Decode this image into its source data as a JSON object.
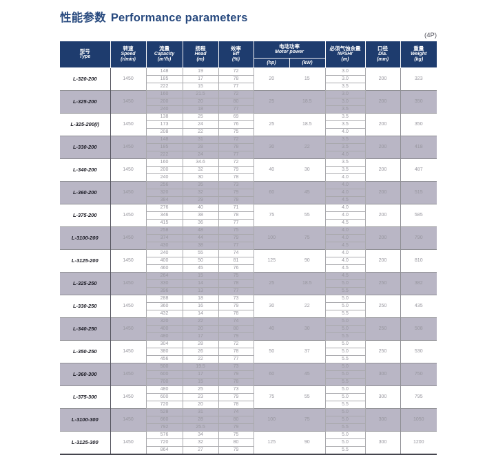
{
  "title": {
    "zh": "性能参数",
    "en": "Performance parameters"
  },
  "page_tag": "(4P)",
  "colors": {
    "header_bg": "#1e3c6e",
    "row_shade": "#b9b6c5",
    "title_color": "#27497e",
    "data_text": "#97969e",
    "model_text": "#16161f"
  },
  "table": {
    "headers": {
      "type": {
        "zh": "型号",
        "en": "Type"
      },
      "speed": {
        "zh": "转速",
        "en": "Speed",
        "unit": "(r/min)"
      },
      "capacity": {
        "zh": "流量",
        "en": "Capacity",
        "unit": "(m³/h)"
      },
      "head": {
        "zh": "扬程",
        "en": "Head",
        "unit": "(m)"
      },
      "eff": {
        "zh": "效率",
        "en": "Eff",
        "unit": "(%)"
      },
      "motor_power": {
        "zh": "电动功率",
        "en": "Motor power",
        "sub": [
          "(hp)",
          "(kW)"
        ]
      },
      "npshr": {
        "zh": "必须气蚀余量",
        "en": "NPSHr",
        "unit": "(m)"
      },
      "dia": {
        "zh": "口径",
        "en": "Dia.",
        "unit": "(mm)"
      },
      "weight": {
        "zh": "重量",
        "en": "Weight",
        "unit": "(kg)"
      }
    },
    "rows": [
      {
        "type": "L-320-200",
        "speed": "1450",
        "capacity": [
          "148",
          "185",
          "222"
        ],
        "head": [
          "19",
          "17",
          "15"
        ],
        "eff": [
          "72",
          "78",
          "77"
        ],
        "hp": "20",
        "kw": "15",
        "npshr": [
          "3.0",
          "3.0",
          "3.5"
        ],
        "dia": "200",
        "weight": "323"
      },
      {
        "type": "L-325-200",
        "speed": "1450",
        "capacity": [
          "160",
          "200",
          "240"
        ],
        "head": [
          "21.5",
          "20",
          "18"
        ],
        "eff": [
          "72",
          "80",
          "77"
        ],
        "hp": "25",
        "kw": "18.5",
        "npshr": [
          "3.0",
          "3.0",
          "3.5"
        ],
        "dia": "200",
        "weight": "350"
      },
      {
        "type": "L-325-200(I)",
        "speed": "1450",
        "capacity": [
          "138",
          "173",
          "208"
        ],
        "head": [
          "25",
          "24",
          "22"
        ],
        "eff": [
          "69",
          "76",
          "75"
        ],
        "hp": "25",
        "kw": "18.5",
        "npshr": [
          "3.5",
          "3.5",
          "4.0"
        ],
        "dia": "200",
        "weight": "350"
      },
      {
        "type": "L-330-200",
        "speed": "1450",
        "capacity": [
          "148",
          "185",
          "222"
        ],
        "head": [
          "31",
          "28",
          "24"
        ],
        "eff": [
          "72",
          "78",
          "77"
        ],
        "hp": "30",
        "kw": "22",
        "npshr": [
          "3.5",
          "3.5",
          "4.0"
        ],
        "dia": "200",
        "weight": "418"
      },
      {
        "type": "L-340-200",
        "speed": "1450",
        "capacity": [
          "160",
          "200",
          "240"
        ],
        "head": [
          "34.6",
          "32",
          "30"
        ],
        "eff": [
          "72",
          "79",
          "78"
        ],
        "hp": "40",
        "kw": "30",
        "npshr": [
          "3.5",
          "3.5",
          "4.0"
        ],
        "dia": "200",
        "weight": "487"
      },
      {
        "type": "L-360-200",
        "speed": "1450",
        "capacity": [
          "256",
          "320",
          "384"
        ],
        "head": [
          "35",
          "32",
          "29"
        ],
        "eff": [
          "73",
          "79",
          "78"
        ],
        "hp": "60",
        "kw": "45",
        "npshr": [
          "4.0",
          "4.0",
          "4.5"
        ],
        "dia": "200",
        "weight": "515"
      },
      {
        "type": "L-375-200",
        "speed": "1450",
        "capacity": [
          "276",
          "346",
          "415"
        ],
        "head": [
          "40",
          "38",
          "36"
        ],
        "eff": [
          "71",
          "78",
          "77"
        ],
        "hp": "75",
        "kw": "55",
        "npshr": [
          "4.0",
          "4.0",
          "4.5"
        ],
        "dia": "200",
        "weight": "585"
      },
      {
        "type": "L-3100-200",
        "speed": "1450",
        "capacity": [
          "258",
          "374",
          "430"
        ],
        "head": [
          "48",
          "44",
          "38"
        ],
        "eff": [
          "75",
          "79",
          "77"
        ],
        "hp": "100",
        "kw": "75",
        "npshr": [
          "4.0",
          "4.0",
          "4.5"
        ],
        "dia": "200",
        "weight": "790"
      },
      {
        "type": "L-3125-200",
        "speed": "1450",
        "capacity": [
          "240",
          "400",
          "460"
        ],
        "head": [
          "55",
          "50",
          "45"
        ],
        "eff": [
          "74",
          "81",
          "76"
        ],
        "hp": "125",
        "kw": "90",
        "npshr": [
          "4.0",
          "4.0",
          "4.5"
        ],
        "dia": "200",
        "weight": "810"
      },
      {
        "type": "L-325-250",
        "speed": "1450",
        "capacity": [
          "264",
          "330",
          "396"
        ],
        "head": [
          "15",
          "14",
          "13"
        ],
        "eff": [
          "75",
          "78",
          "77"
        ],
        "hp": "25",
        "kw": "18.5",
        "npshr": [
          "4.5",
          "5.0",
          "5.5"
        ],
        "dia": "250",
        "weight": "382"
      },
      {
        "type": "L-330-250",
        "speed": "1450",
        "capacity": [
          "288",
          "360",
          "432"
        ],
        "head": [
          "18",
          "16",
          "14"
        ],
        "eff": [
          "73",
          "79",
          "78"
        ],
        "hp": "30",
        "kw": "22",
        "npshr": [
          "5.0",
          "5.0",
          "5.5"
        ],
        "dia": "250",
        "weight": "435"
      },
      {
        "type": "L-340-250",
        "speed": "1450",
        "capacity": [
          "320",
          "400",
          "480"
        ],
        "head": [
          "22",
          "20",
          "17"
        ],
        "eff": [
          "74",
          "80",
          "79"
        ],
        "hp": "40",
        "kw": "30",
        "npshr": [
          "5.0",
          "5.0",
          "5.5"
        ],
        "dia": "250",
        "weight": "508"
      },
      {
        "type": "L-350-250",
        "speed": "1450",
        "capacity": [
          "304",
          "380",
          "456"
        ],
        "head": [
          "28",
          "26",
          "22"
        ],
        "eff": [
          "72",
          "78",
          "77"
        ],
        "hp": "50",
        "kw": "37",
        "npshr": [
          "5.0",
          "5.0",
          "5.5"
        ],
        "dia": "250",
        "weight": "530"
      },
      {
        "type": "L-360-300",
        "speed": "1450",
        "capacity": [
          "500",
          "600",
          "700"
        ],
        "head": [
          "19.5",
          "17",
          "15"
        ],
        "eff": [
          "73",
          "79",
          "78"
        ],
        "hp": "60",
        "kw": "45",
        "npshr": [
          "5.0",
          "5.0",
          "5.5"
        ],
        "dia": "300",
        "weight": "750"
      },
      {
        "type": "L-375-300",
        "speed": "1450",
        "capacity": [
          "480",
          "600",
          "720"
        ],
        "head": [
          "25",
          "23",
          "20"
        ],
        "eff": [
          "73",
          "79",
          "78"
        ],
        "hp": "75",
        "kw": "55",
        "npshr": [
          "5.0",
          "5.0",
          "5.5"
        ],
        "dia": "300",
        "weight": "795"
      },
      {
        "type": "L-3100-300",
        "speed": "1450",
        "capacity": [
          "528",
          "660",
          "792"
        ],
        "head": [
          "31",
          "28",
          "25.5"
        ],
        "eff": [
          "74",
          "80",
          "79"
        ],
        "hp": "100",
        "kw": "75",
        "npshr": [
          "5.0",
          "5.0",
          "5.5"
        ],
        "dia": "300",
        "weight": "1050"
      },
      {
        "type": "L-3125-300",
        "speed": "1450",
        "capacity": [
          "576",
          "720",
          "864"
        ],
        "head": [
          "34",
          "32",
          "27"
        ],
        "eff": [
          "75",
          "80",
          "79"
        ],
        "hp": "125",
        "kw": "90",
        "npshr": [
          "5.0",
          "5.0",
          "5.5"
        ],
        "dia": "300",
        "weight": "1200"
      }
    ]
  }
}
